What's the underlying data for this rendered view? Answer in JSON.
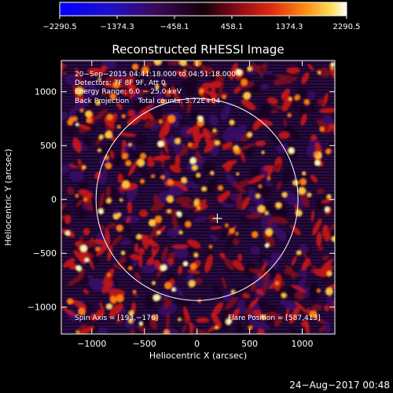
{
  "chart_data": {
    "type": "heatmap",
    "title": "Reconstructed RHESSI Image",
    "xlabel": "Heliocentric X (arcsec)",
    "ylabel": "Heliocentric Y (arcsec)",
    "xlim": [
      -1290,
      1310
    ],
    "ylim": [
      -1250,
      1290
    ],
    "x_ticks": [
      -1000,
      -500,
      0,
      500,
      1000
    ],
    "x_tick_labels": [
      "−1000",
      "−500",
      "0",
      "500",
      "1000"
    ],
    "y_ticks": [
      -1000,
      -500,
      0,
      500,
      1000
    ],
    "y_tick_labels": [
      "−1000",
      "−500",
      "0",
      "500",
      "1000"
    ],
    "colorbar": {
      "min": -2290.5,
      "max": 2290.5,
      "colormap": "blue-black-red-yellow-white",
      "ticks": [
        -2290.5,
        -1374.3,
        -458.1,
        458.1,
        1374.3,
        2290.5
      ],
      "tick_labels": [
        "−2290.5",
        "−1374.3",
        "−458.1",
        "458.1",
        "1374.3",
        "2290.5"
      ]
    },
    "annotations": [
      "20−Sep−2015 04:41:18.000 to 04:51:18.000",
      "Detectors: 7F 8F 9F, Att 0",
      "Energy Range: 6.0 − 25.0 keV",
      "Back Projection    Total counts: 3.72E+04"
    ],
    "spin_axis_text": "Spin Axis = [193,−176]",
    "flare_position_text": "Flare Position = [587,413]",
    "solar_limb": {
      "center": [
        0,
        0
      ],
      "radius_arcsec": 960
    },
    "crosshair": {
      "x": 193,
      "y": -176
    }
  },
  "footer": {
    "timestamp": "24−Aug−2017 00:48"
  }
}
